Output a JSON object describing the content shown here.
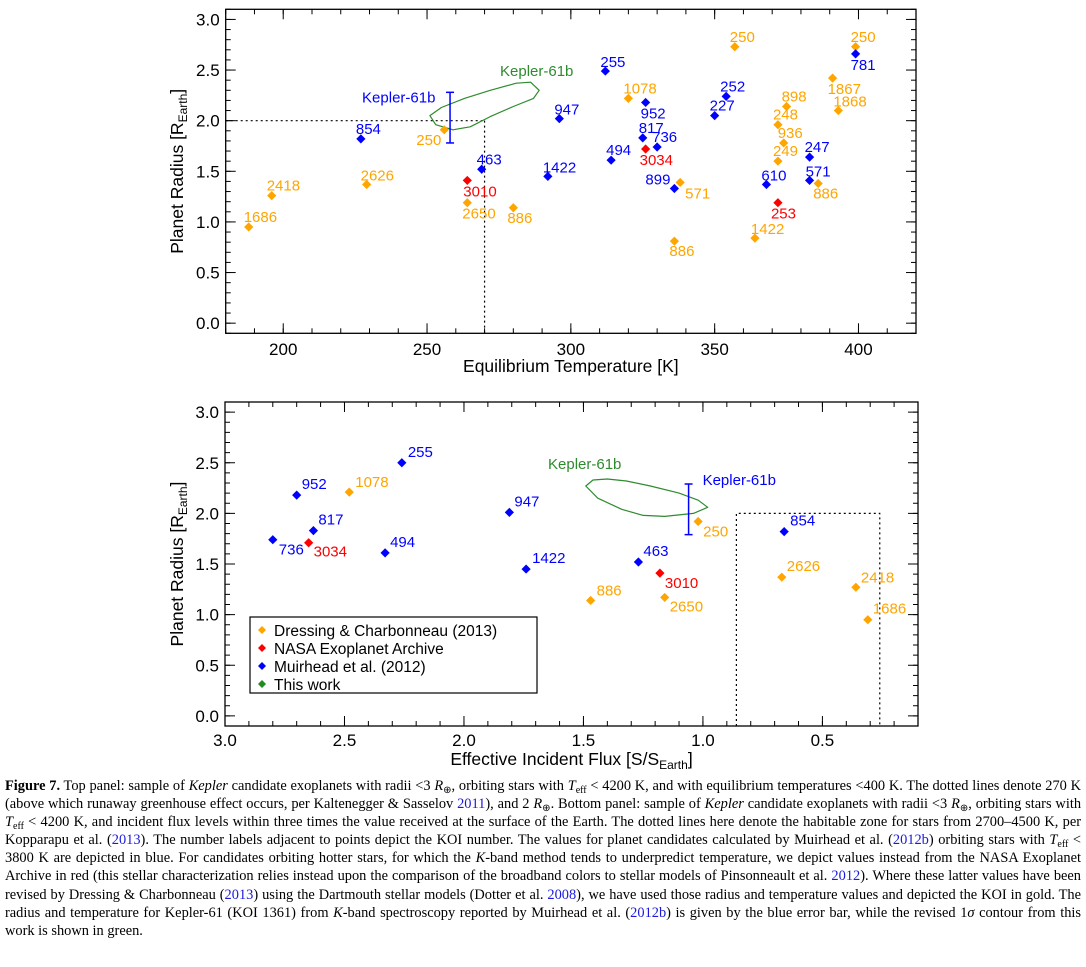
{
  "chart_data": [
    {
      "type": "scatter",
      "panel": "top",
      "xlabel": {
        "text": "Equilibrium Temperature [K]"
      },
      "ylabel": {
        "text": "Planet Radius [R",
        "sub": "Earth",
        "end": "]"
      },
      "xlim": [
        180,
        420
      ],
      "ylim": [
        -0.1,
        3.1
      ],
      "xticks": [
        200,
        250,
        300,
        350,
        400
      ],
      "xtick_labels": [
        "200",
        "250",
        "300",
        "350",
        "400"
      ],
      "xminor": 10,
      "yticks": [
        0,
        0.5,
        1,
        1.5,
        2,
        2.5,
        3
      ],
      "ytick_labels": [
        "0.0",
        "0.5",
        "1.0",
        "1.5",
        "2.0",
        "2.5",
        "3.0"
      ],
      "yminor": 0.1,
      "grid": false,
      "series": [
        {
          "color": "#FFA500",
          "points": [
            {
              "x": 188,
              "y": 0.95,
              "label": "1686"
            },
            {
              "x": 196,
              "y": 1.26,
              "label": "2418"
            },
            {
              "x": 229,
              "y": 1.37,
              "label": "2626"
            },
            {
              "x": 256,
              "y": 1.91,
              "label": "250"
            },
            {
              "x": 264,
              "y": 1.19,
              "label": "2650"
            },
            {
              "x": 280,
              "y": 1.14,
              "label": "886"
            },
            {
              "x": 320,
              "y": 2.22,
              "label": "1078"
            },
            {
              "x": 338,
              "y": 1.39,
              "label": "571"
            },
            {
              "x": 336,
              "y": 0.81,
              "label": "886"
            },
            {
              "x": 357,
              "y": 2.73,
              "label": "250"
            },
            {
              "x": 375,
              "y": 2.14,
              "label": "898"
            },
            {
              "x": 372,
              "y": 1.96,
              "label": "248"
            },
            {
              "x": 374,
              "y": 1.78,
              "label": "936"
            },
            {
              "x": 372,
              "y": 1.6,
              "label": "249"
            },
            {
              "x": 364,
              "y": 0.84,
              "label": "1422"
            },
            {
              "x": 386,
              "y": 1.38,
              "label": "886"
            },
            {
              "x": 399,
              "y": 2.73,
              "label": "250"
            },
            {
              "x": 391,
              "y": 2.42,
              "label": "1867"
            },
            {
              "x": 393,
              "y": 2.1,
              "label": "1868"
            }
          ]
        },
        {
          "color": "#FF0000",
          "points": [
            {
              "x": 264,
              "y": 1.41,
              "label": "3010"
            },
            {
              "x": 326,
              "y": 1.72,
              "label": "3034"
            },
            {
              "x": 372,
              "y": 1.19,
              "label": "253"
            }
          ]
        },
        {
          "color": "#0000FF",
          "points": [
            {
              "x": 227,
              "y": 1.82,
              "label": "854"
            },
            {
              "x": 269,
              "y": 1.52,
              "label": "463"
            },
            {
              "x": 296,
              "y": 2.02,
              "label": "947"
            },
            {
              "x": 292,
              "y": 1.45,
              "label": "1422"
            },
            {
              "x": 312,
              "y": 2.49,
              "label": "255"
            },
            {
              "x": 326,
              "y": 2.18,
              "label": "952"
            },
            {
              "x": 325,
              "y": 1.83,
              "label": "817"
            },
            {
              "x": 330,
              "y": 1.74,
              "label": "736"
            },
            {
              "x": 314,
              "y": 1.61,
              "label": "494"
            },
            {
              "x": 336,
              "y": 1.33,
              "label": "899"
            },
            {
              "x": 354,
              "y": 2.24,
              "label": "252"
            },
            {
              "x": 350,
              "y": 2.05,
              "label": "227"
            },
            {
              "x": 368,
              "y": 1.37,
              "label": "610"
            },
            {
              "x": 383,
              "y": 1.64,
              "label": "247"
            },
            {
              "x": 383,
              "y": 1.41,
              "label": "571"
            },
            {
              "x": 399,
              "y": 2.66,
              "label": "781"
            }
          ]
        }
      ],
      "error_bar": {
        "label": "Kepler-61b",
        "color": "#0000FF",
        "x": 258,
        "y_low": 1.78,
        "y_high": 2.28
      },
      "contour": {
        "label": "Kepler-61b",
        "color": "#2E8B2E",
        "points": [
          [
            251,
            2.05
          ],
          [
            255,
            2.13
          ],
          [
            263,
            2.22
          ],
          [
            272,
            2.3
          ],
          [
            281,
            2.37
          ],
          [
            286,
            2.38
          ],
          [
            289,
            2.3
          ],
          [
            287,
            2.22
          ],
          [
            280,
            2.14
          ],
          [
            272,
            2.04
          ],
          [
            265,
            1.94
          ],
          [
            259,
            1.91
          ],
          [
            253,
            1.96
          ]
        ]
      },
      "reference_lines": {
        "x": 270,
        "y": 2.0,
        "style": "dotted"
      }
    },
    {
      "type": "scatter",
      "panel": "bottom",
      "xlabel": {
        "text": "Effective Incident Flux [S/S",
        "sub": "Earth",
        "end": "]"
      },
      "ylabel": {
        "text": "Planet Radius [R",
        "sub": "Earth",
        "end": "]"
      },
      "xlim": [
        3.0,
        0.1
      ],
      "ylim": [
        -0.1,
        3.1
      ],
      "x_reversed": true,
      "xticks": [
        3.0,
        2.5,
        2.0,
        1.5,
        1.0,
        0.5
      ],
      "xtick_labels": [
        "3.0",
        "2.5",
        "2.0",
        "1.5",
        "1.0",
        "0.5"
      ],
      "xminor": 0.1,
      "yticks": [
        0,
        0.5,
        1,
        1.5,
        2,
        2.5,
        3
      ],
      "ytick_labels": [
        "0.0",
        "0.5",
        "1.0",
        "1.5",
        "2.0",
        "2.5",
        "3.0"
      ],
      "yminor": 0.1,
      "grid": false,
      "legend_placement": "bottom-left",
      "series": [
        {
          "name": "Dressing & Charbonneau (2013)",
          "color": "#FFA500",
          "points": [
            {
              "x": 2.48,
              "y": 2.21,
              "label": "1078"
            },
            {
              "x": 1.47,
              "y": 1.14,
              "label": "886"
            },
            {
              "x": 1.16,
              "y": 1.17,
              "label": "2650"
            },
            {
              "x": 1.02,
              "y": 1.92,
              "label": "250"
            },
            {
              "x": 0.67,
              "y": 1.37,
              "label": "2626"
            },
            {
              "x": 0.36,
              "y": 1.27,
              "label": "2418"
            },
            {
              "x": 0.31,
              "y": 0.95,
              "label": "1686"
            }
          ]
        },
        {
          "name": "NASA Exoplanet Archive",
          "color": "#FF0000",
          "points": [
            {
              "x": 2.65,
              "y": 1.71,
              "label": "3034"
            },
            {
              "x": 1.18,
              "y": 1.41,
              "label": "3010"
            }
          ]
        },
        {
          "name": "Muirhead et al. (2012)",
          "color": "#0000FF",
          "points": [
            {
              "x": 2.26,
              "y": 2.5,
              "label": "255"
            },
            {
              "x": 2.7,
              "y": 2.18,
              "label": "952"
            },
            {
              "x": 2.63,
              "y": 1.83,
              "label": "817"
            },
            {
              "x": 2.8,
              "y": 1.74,
              "label": "736"
            },
            {
              "x": 2.33,
              "y": 1.61,
              "label": "494"
            },
            {
              "x": 1.81,
              "y": 2.01,
              "label": "947"
            },
            {
              "x": 1.74,
              "y": 1.45,
              "label": "1422"
            },
            {
              "x": 1.27,
              "y": 1.52,
              "label": "463"
            },
            {
              "x": 0.66,
              "y": 1.82,
              "label": "854"
            }
          ]
        },
        {
          "name": "This work",
          "color": "#228B22",
          "points": []
        }
      ],
      "error_bar": {
        "label": "Kepler-61b",
        "color": "#0000FF",
        "x": 1.06,
        "y_low": 1.79,
        "y_high": 2.29
      },
      "contour": {
        "label": "Kepler-61b",
        "color": "#2E8B2E",
        "points": [
          [
            1.49,
            2.27
          ],
          [
            1.46,
            2.33
          ],
          [
            1.4,
            2.34
          ],
          [
            1.32,
            2.32
          ],
          [
            1.22,
            2.27
          ],
          [
            1.1,
            2.2
          ],
          [
            1.02,
            2.13
          ],
          [
            0.98,
            2.06
          ],
          [
            1.04,
            2.0
          ],
          [
            1.16,
            1.97
          ],
          [
            1.25,
            1.98
          ],
          [
            1.34,
            2.04
          ],
          [
            1.44,
            2.15
          ]
        ]
      },
      "habitable_zone_box": {
        "x": [
          0.86,
          0.26
        ],
        "y_max": 2.0,
        "style": "dotted"
      }
    }
  ],
  "caption": [
    {
      "t": "Figure 7.",
      "s": "b"
    },
    {
      "t": " Top panel: sample of "
    },
    {
      "t": "Kepler",
      "s": "i"
    },
    {
      "t": " candidate exoplanets with radii <3 "
    },
    {
      "t": "R",
      "s": "i"
    },
    {
      "t": "⊕",
      "s": "sub"
    },
    {
      "t": ", orbiting stars with "
    },
    {
      "t": "T",
      "s": "i"
    },
    {
      "t": "eff",
      "s": "sub"
    },
    {
      "t": " < 4200 K, and with equilibrium temperatures <400 K. The dotted lines denote 270 K (above which runaway greenhouse effect occurs, per Kaltenegger & Sasselov "
    },
    {
      "t": "2011",
      "s": "link"
    },
    {
      "t": "), and 2 "
    },
    {
      "t": "R",
      "s": "i"
    },
    {
      "t": "⊕",
      "s": "sub"
    },
    {
      "t": ". Bottom panel: sample of "
    },
    {
      "t": "Kepler",
      "s": "i"
    },
    {
      "t": " candidate exoplanets with radii <3 "
    },
    {
      "t": "R",
      "s": "i"
    },
    {
      "t": "⊕",
      "s": "sub"
    },
    {
      "t": ", orbiting stars with "
    },
    {
      "t": "T",
      "s": "i"
    },
    {
      "t": "eff",
      "s": "sub"
    },
    {
      "t": " < 4200 K, and incident flux levels within three times the value received at the surface of the Earth. The dotted lines here denote the habitable zone for stars from 2700–4500 K, per Kopparapu et al. ("
    },
    {
      "t": "2013",
      "s": "link"
    },
    {
      "t": "). The number labels adjacent to points depict the KOI number. The values for planet candidates calculated by Muirhead et al. ("
    },
    {
      "t": "2012b",
      "s": "link"
    },
    {
      "t": ") orbiting stars with "
    },
    {
      "t": "T",
      "s": "i"
    },
    {
      "t": "eff",
      "s": "sub"
    },
    {
      "t": " < 3800 K are depicted in blue. For candidates orbiting hotter stars, for which the "
    },
    {
      "t": "K",
      "s": "i"
    },
    {
      "t": "-band method tends to underpredict temperature, we depict values instead from the NASA Exoplanet Archive in red (this stellar characterization relies instead upon the comparison of the broadband colors to stellar models of Pinsonneault et al. "
    },
    {
      "t": "2012",
      "s": "link"
    },
    {
      "t": "). Where these latter values have been revised by Dressing & Charbonneau ("
    },
    {
      "t": "2013",
      "s": "link"
    },
    {
      "t": ") using the Dartmouth stellar models (Dotter et al. "
    },
    {
      "t": "2008",
      "s": "link"
    },
    {
      "t": "), we have used those radius and temperature values and depicted the KOI in gold. The radius and temperature for Kepler-61 (KOI 1361) from "
    },
    {
      "t": "K",
      "s": "i"
    },
    {
      "t": "-band spectroscopy reported by Muirhead et al. ("
    },
    {
      "t": "2012b",
      "s": "link"
    },
    {
      "t": ") is given by the blue error bar, while the revised 1"
    },
    {
      "t": "σ",
      "s": "i"
    },
    {
      "t": " contour from this work is shown in green."
    }
  ]
}
